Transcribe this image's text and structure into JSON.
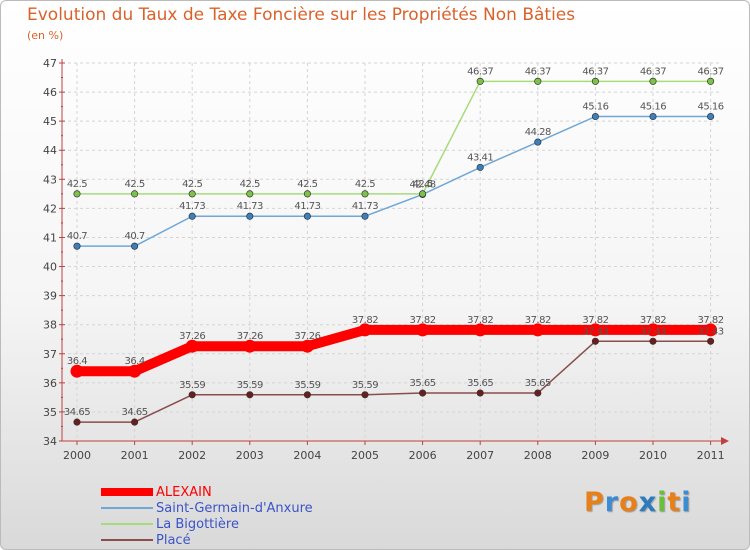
{
  "header": {
    "title": "Evolution du Taux de Taxe Foncière sur les Propriétés Non Bâties",
    "subtitle": "(en %)"
  },
  "brand": {
    "letters": [
      "P",
      "r",
      "o",
      "x",
      "i",
      "t",
      "i"
    ],
    "colors": [
      "#e8801a",
      "#3d8bd0",
      "#e8801a",
      "#2c7bbf",
      "#6bbf3a",
      "#e8801a",
      "#3d8bd0"
    ]
  },
  "chart_data": {
    "type": "line",
    "title": "Evolution du Taux de Taxe Foncière sur les Propriétés Non Bâties",
    "ylabel": "(en %)",
    "xlabel": "",
    "categories": [
      "2000",
      "2001",
      "2002",
      "2003",
      "2004",
      "2005",
      "2006",
      "2007",
      "2008",
      "2009",
      "2010",
      "2011"
    ],
    "ylim": [
      34,
      47
    ],
    "yticks": [
      "34",
      "35",
      "36",
      "37",
      "38",
      "39",
      "40",
      "41",
      "42",
      "43",
      "44",
      "45",
      "46",
      "47"
    ],
    "grid": true,
    "legend_position": "bottom-left",
    "series": [
      {
        "name": "ALEXAIN",
        "color": "#ff0000",
        "marker_color": "#ff0000",
        "values": [
          36.4,
          36.4,
          37.26,
          37.26,
          37.26,
          37.82,
          37.82,
          37.82,
          37.82,
          37.82,
          37.82,
          37.82
        ],
        "labels": [
          "36.4",
          "36.4",
          "37.26",
          "37.26",
          "37.26",
          "37.82",
          "37.82",
          "37.82",
          "37.82",
          "37.82",
          "37.82",
          "37.82"
        ]
      },
      {
        "name": "Saint-Germain-d'Anxure",
        "color": "#6fa7d6",
        "marker_color": "#3a7fc0",
        "values": [
          40.7,
          40.7,
          41.73,
          41.73,
          41.73,
          41.73,
          42.48,
          43.41,
          44.28,
          45.16,
          45.16,
          45.16
        ],
        "labels": [
          "40.7",
          "40.7",
          "41.73",
          "41.73",
          "41.73",
          "41.73",
          "42.48",
          "43.41",
          "44.28",
          "45.16",
          "45.16",
          "45.16"
        ]
      },
      {
        "name": "La Bigottière",
        "color": "#a6dc7c",
        "marker_color": "#7cc447",
        "values": [
          42.5,
          42.5,
          42.5,
          42.5,
          42.5,
          42.5,
          42.5,
          46.37,
          46.37,
          46.37,
          46.37,
          46.37
        ],
        "labels": [
          "42.5",
          "42.5",
          "42.5",
          "42.5",
          "42.5",
          "42.5",
          "42.5",
          "46.37",
          "46.37",
          "46.37",
          "46.37",
          "46.37"
        ]
      },
      {
        "name": "Placé",
        "color": "#8a4d4d",
        "marker_color": "#6b1e1e",
        "values": [
          34.65,
          34.65,
          35.59,
          35.59,
          35.59,
          35.59,
          35.65,
          35.65,
          35.65,
          37.43,
          37.43,
          37.43
        ],
        "labels": [
          "34.65",
          "34.65",
          "35.59",
          "35.59",
          "35.59",
          "35.59",
          "35.65",
          "35.65",
          "35.65",
          "37.43",
          "37.43",
          "37.43"
        ]
      }
    ]
  }
}
